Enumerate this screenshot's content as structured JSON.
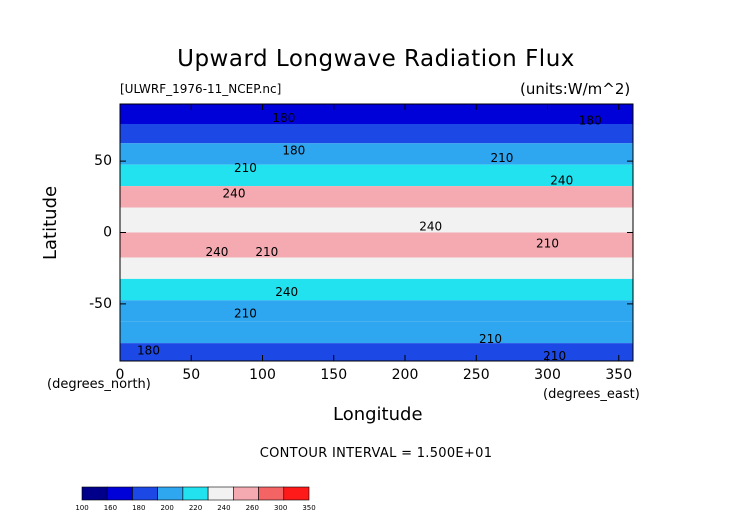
{
  "header": {
    "title": "Upward Longwave Radiation Flux",
    "file_label": "[ULWRF_1976-11_NCEP.nc]",
    "units_label": "(units:W/m^2)"
  },
  "footer": {
    "contour_interval": "CONTOUR INTERVAL = 1.500E+01"
  },
  "chart_data": {
    "type": "heatmap",
    "title": "Upward Longwave Radiation Flux",
    "xlabel": "Longitude",
    "ylabel": "Latitude",
    "x_unit": "(degrees_east)",
    "y_unit": "(degrees_north)",
    "xlim": [
      0,
      360
    ],
    "ylim": [
      -90,
      90
    ],
    "xticks": [
      0,
      50,
      100,
      150,
      200,
      250,
      300,
      350
    ],
    "yticks": [
      -50,
      0,
      50
    ],
    "colorbar": {
      "levels": [
        100,
        160,
        180,
        200,
        220,
        240,
        260,
        300,
        350
      ],
      "colors": [
        "#00008b",
        "#0000d8",
        "#1c48e6",
        "#2ea6f0",
        "#22e2f0",
        "#f2f2f2",
        "#f4aab0",
        "#f46464",
        "#ff1a1a"
      ]
    },
    "zonal_band_values": [
      {
        "lat": 82,
        "value": 165
      },
      {
        "lat": 70,
        "value": 185
      },
      {
        "lat": 55,
        "value": 205
      },
      {
        "lat": 40,
        "value": 232
      },
      {
        "lat": 25,
        "value": 262
      },
      {
        "lat": 10,
        "value": 250
      },
      {
        "lat": -10,
        "value": 268
      },
      {
        "lat": -25,
        "value": 258
      },
      {
        "lat": -40,
        "value": 235
      },
      {
        "lat": -55,
        "value": 208
      },
      {
        "lat": -70,
        "value": 205
      },
      {
        "lat": -85,
        "value": 180
      }
    ],
    "contour_labels": [
      {
        "text": "180",
        "lon": 115,
        "lat": 80
      },
      {
        "text": "180",
        "lon": 330,
        "lat": 78
      },
      {
        "text": "180",
        "lon": 122,
        "lat": 57
      },
      {
        "text": "210",
        "lon": 268,
        "lat": 52
      },
      {
        "text": "210",
        "lon": 88,
        "lat": 45
      },
      {
        "text": "240",
        "lon": 310,
        "lat": 36
      },
      {
        "text": "240",
        "lon": 80,
        "lat": 27
      },
      {
        "text": "240",
        "lon": 218,
        "lat": 4
      },
      {
        "text": "240",
        "lon": 68,
        "lat": -14
      },
      {
        "text": "210",
        "lon": 103,
        "lat": -14
      },
      {
        "text": "210",
        "lon": 300,
        "lat": -8
      },
      {
        "text": "240",
        "lon": 117,
        "lat": -42
      },
      {
        "text": "210",
        "lon": 88,
        "lat": -57
      },
      {
        "text": "210",
        "lon": 260,
        "lat": -75
      },
      {
        "text": "210",
        "lon": 305,
        "lat": -87
      },
      {
        "text": "180",
        "lon": 20,
        "lat": -83
      }
    ]
  }
}
